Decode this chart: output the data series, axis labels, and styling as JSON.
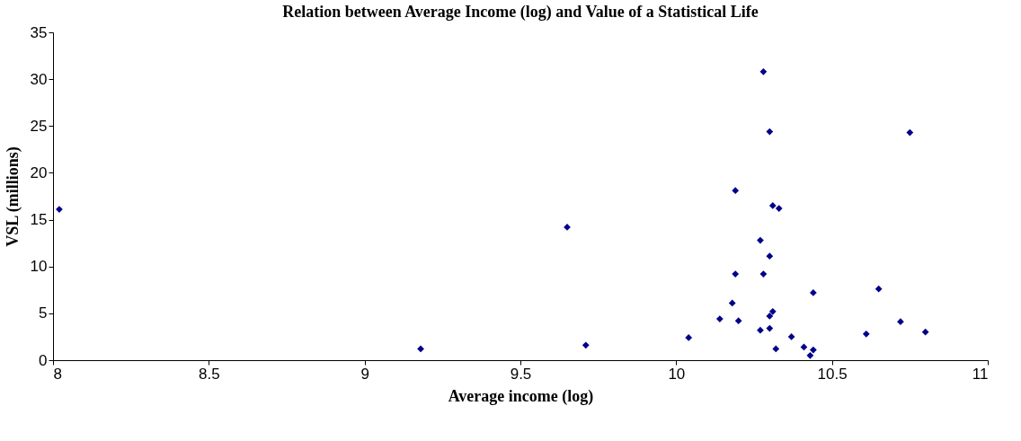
{
  "chart_data": {
    "type": "scatter",
    "title": "Relation between Average Income (log) and Value of a Statistical Life",
    "xlabel": "Average income (log)",
    "ylabel": "VSL (millions)",
    "x": [
      8.02,
      9.18,
      9.65,
      9.71,
      10.04,
      10.28,
      10.3,
      10.75,
      10.19,
      10.31,
      10.33,
      10.27,
      10.3,
      10.19,
      10.28,
      10.44,
      10.65,
      10.18,
      10.14,
      10.2,
      10.3,
      10.31,
      10.27,
      10.3,
      10.37,
      10.61,
      10.72,
      10.8,
      10.32,
      10.41,
      10.44,
      10.43
    ],
    "series": [
      {
        "color": "#00008b",
        "values": [
          16.1,
          1.2,
          14.2,
          1.6,
          2.4,
          30.8,
          24.4,
          24.3,
          18.1,
          16.5,
          16.2,
          12.8,
          11.1,
          9.2,
          9.2,
          7.2,
          7.6,
          6.1,
          4.4,
          4.2,
          4.7,
          5.2,
          3.2,
          3.4,
          2.5,
          2.8,
          4.1,
          3.0,
          1.2,
          1.4,
          1.1,
          0.5
        ]
      }
    ],
    "xlim": [
      8,
      11
    ],
    "xticks": [
      8,
      8.5,
      9,
      9.5,
      10,
      10.5,
      11
    ],
    "ylim": [
      0,
      35
    ],
    "yticks": [
      0,
      5,
      10,
      15,
      20,
      25,
      30,
      35
    ],
    "grid": false,
    "marker": "diamond"
  }
}
